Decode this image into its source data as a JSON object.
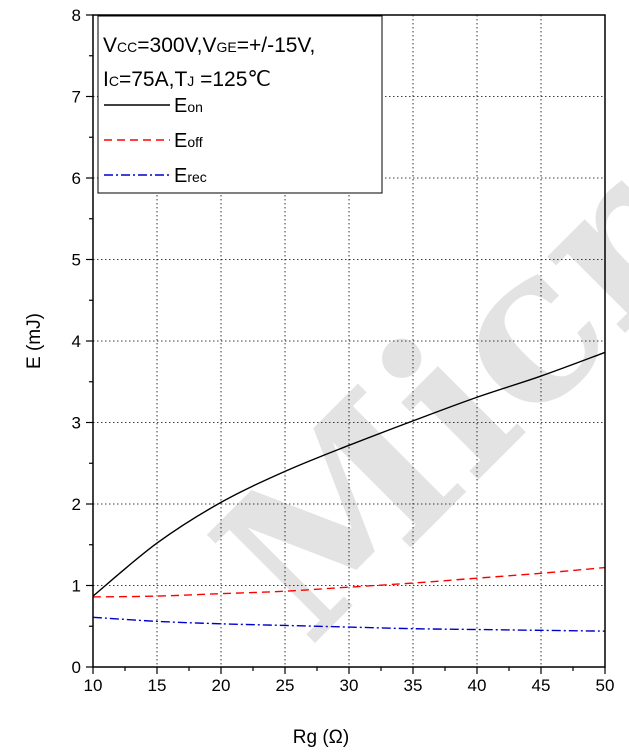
{
  "chart_data": {
    "type": "line",
    "xlabel": "Rg (Ω)",
    "ylabel": "E (mJ)",
    "xlim": [
      10,
      50
    ],
    "ylim": [
      0,
      8
    ],
    "xticks": [
      10,
      15,
      20,
      25,
      30,
      35,
      40,
      45,
      50
    ],
    "yticks": [
      0,
      1,
      2,
      3,
      4,
      5,
      6,
      7,
      8
    ],
    "grid": true,
    "legend_position": "top-left",
    "conditions": {
      "line1": {
        "v_main": "V",
        "v_sub": "CC",
        "v_val": "=300V,",
        "g_main": "V",
        "g_sub": "GE",
        "g_val": "=+/-15V,"
      },
      "line2": {
        "i_main": "I",
        "i_sub": "C",
        "i_val": "=75A,",
        "t_main": "T",
        "t_sub": "J",
        "t_val": " =125℃"
      }
    },
    "watermark": "Micro",
    "series": [
      {
        "name": "Eon",
        "name_main": "E",
        "name_sub": "on",
        "color": "#000000",
        "dash": "solid",
        "x": [
          10,
          15,
          20,
          25,
          30,
          35,
          40,
          45,
          50
        ],
        "y": [
          0.87,
          1.52,
          2.02,
          2.4,
          2.72,
          3.02,
          3.31,
          3.57,
          3.86
        ]
      },
      {
        "name": "Eoff",
        "name_main": "E",
        "name_sub": "off",
        "color": "#ff0000",
        "dash": "dashed",
        "x": [
          10,
          15,
          20,
          25,
          30,
          35,
          40,
          45,
          50
        ],
        "y": [
          0.86,
          0.87,
          0.9,
          0.93,
          0.98,
          1.03,
          1.09,
          1.15,
          1.22
        ]
      },
      {
        "name": "Erec",
        "name_main": "E",
        "name_sub": "rec",
        "color": "#0000cc",
        "dash": "dashdot",
        "x": [
          10,
          15,
          20,
          25,
          30,
          35,
          40,
          45,
          50
        ],
        "y": [
          0.61,
          0.56,
          0.53,
          0.51,
          0.49,
          0.47,
          0.46,
          0.45,
          0.44
        ]
      }
    ]
  }
}
